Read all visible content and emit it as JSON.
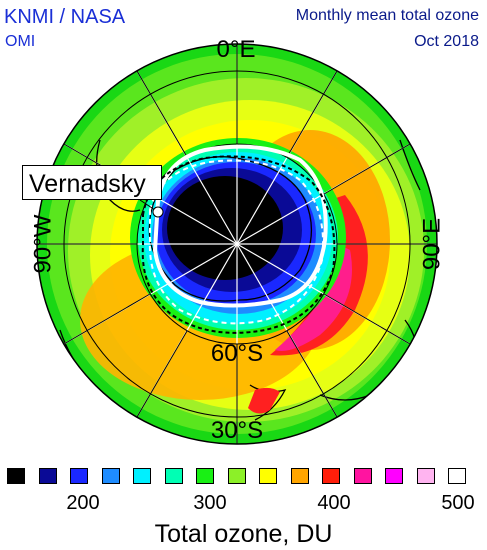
{
  "header": {
    "credit": "KNMI / NASA",
    "instrument": "OMI",
    "product": "Monthly mean total ozone",
    "period": "Oct 2018"
  },
  "map": {
    "projection": "south-polar-orthographic",
    "labels": {
      "top": "0°E",
      "left": "90°W",
      "right": "90°E",
      "lat_60": "60°S",
      "lat_30": "30°S"
    },
    "station": "Vernadsky"
  },
  "legend": {
    "colors": [
      "#000000",
      "#0a0a96",
      "#1a28ff",
      "#1e8cff",
      "#00f0ff",
      "#00ffb4",
      "#19f014",
      "#8cf028",
      "#ffff00",
      "#ffa500",
      "#ff1e0a",
      "#ff14a0",
      "#ff00ff",
      "#ffb4f0",
      "#ffffff"
    ],
    "tick_labels": [
      "200",
      "300",
      "400",
      "500"
    ],
    "title": "Total ozone, DU"
  }
}
